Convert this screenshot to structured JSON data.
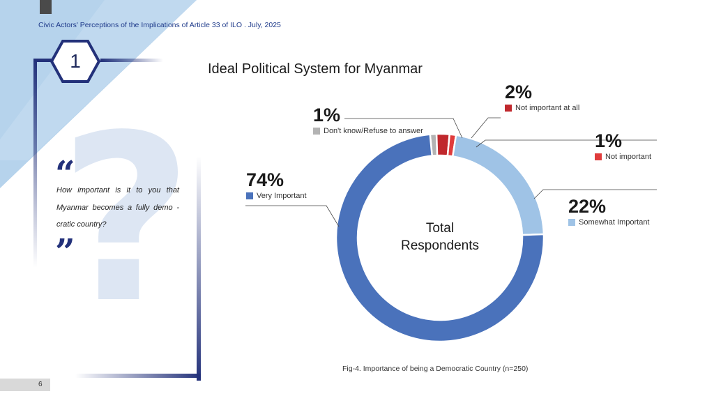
{
  "header": {
    "title": "Civic Actors' Perceptions of the Implications of Article 33 of ILO . July, 2025"
  },
  "section": {
    "number": "1"
  },
  "question": {
    "open_quote": "“",
    "close_quote": "”",
    "text": "How important is it to you that Myanmar becomes a fully demo - cratic country?",
    "decor_glyph": "?"
  },
  "colors": {
    "very_important": "#4a72bb",
    "somewhat_important": "#9fc3e6",
    "not_important": "#e03c3c",
    "not_important_at_all": "#c0282d",
    "dont_know": "#b3b3b3",
    "navy": "#23317a"
  },
  "chart_data": {
    "type": "pie",
    "title": "Ideal Political System for Myanmar",
    "center_label": [
      "Total",
      "Respondents"
    ],
    "caption": "Fig-4. Importance of being a Democratic Country (n=250)",
    "slices": [
      {
        "label": "Don't know/Refuse to answer",
        "value": 1,
        "display": "1%",
        "color": "#b3b3b3"
      },
      {
        "label": "Not important at all",
        "value": 2,
        "display": "2%",
        "color": "#c0282d"
      },
      {
        "label": "Not important",
        "value": 1,
        "display": "1%",
        "color": "#e03c3c"
      },
      {
        "label": "Somewhat Important",
        "value": 22,
        "display": "22%",
        "color": "#9fc3e6"
      },
      {
        "label": "Very Important",
        "value": 74,
        "display": "74%",
        "color": "#4a72bb"
      }
    ]
  },
  "footer": {
    "page_number": "6"
  }
}
